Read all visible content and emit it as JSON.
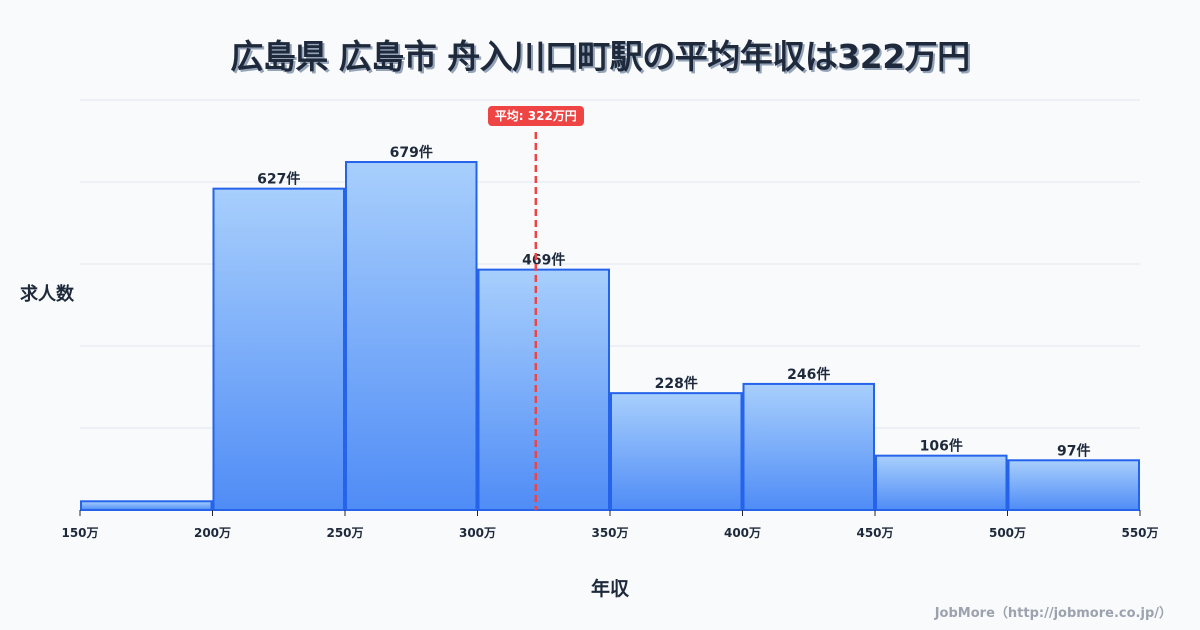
{
  "title": "広島県 広島市 舟入川口町駅の平均年収は322万円",
  "axis": {
    "ylabel": "求人数",
    "xlabel": "年収"
  },
  "mean": {
    "value": 322,
    "label": "平均: 322万円",
    "color": "#ef4444"
  },
  "credit": "JobMore（http://jobmore.co.jp/）",
  "colors": {
    "bar_top": "#a8cffc",
    "bar_bottom": "#4f8cf6",
    "bar_border": "#2563eb",
    "grid": "#e2e8f0",
    "text": "#1e293b"
  },
  "chart_data": {
    "type": "bar",
    "title": "広島県 広島市 舟入川口町駅の平均年収は322万円",
    "xlabel": "年収",
    "ylabel": "求人数",
    "categories": [
      "150-200万",
      "200-250万",
      "250-300万",
      "300-350万",
      "350-400万",
      "400-450万",
      "450-500万",
      "500-550万"
    ],
    "bin_edges": [
      150,
      200,
      250,
      300,
      350,
      400,
      450,
      500,
      550
    ],
    "x_tick_labels": [
      "150万",
      "200万",
      "250万",
      "300万",
      "350万",
      "400万",
      "450万",
      "500万",
      "550万"
    ],
    "values": [
      17,
      627,
      679,
      469,
      228,
      246,
      106,
      97
    ],
    "value_labels": [
      "",
      "627件",
      "679件",
      "469件",
      "228件",
      "246件",
      "106件",
      "97件"
    ],
    "ylim": [
      0,
      800
    ],
    "xlim": [
      150,
      550
    ],
    "grid": true,
    "y_gridlines": [
      0,
      160,
      320,
      480,
      640,
      800
    ],
    "annotations": [
      {
        "type": "vline",
        "x": 322,
        "label": "平均: 322万円",
        "style": "dashed",
        "color": "#ef4444"
      }
    ],
    "legend": null
  }
}
